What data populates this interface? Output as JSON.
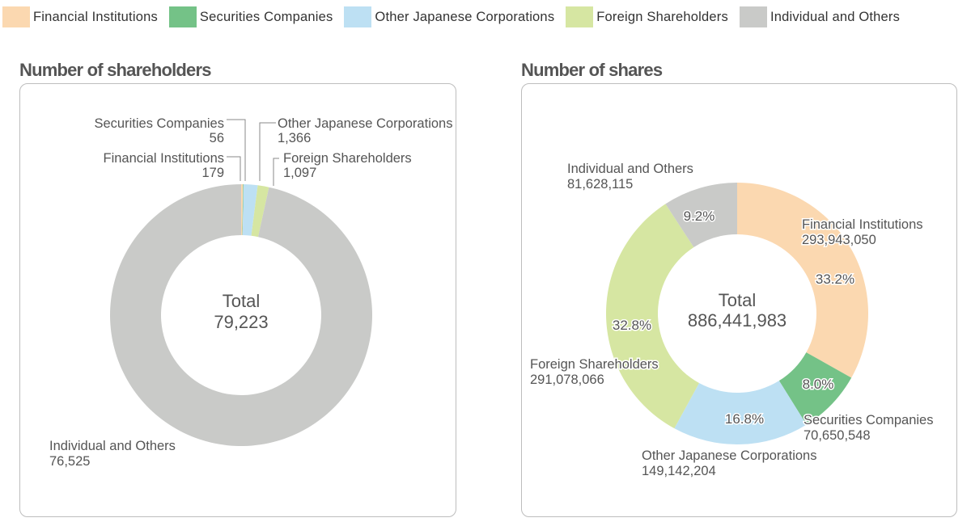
{
  "legend": [
    {
      "label": "Financial Institutions",
      "color": "#fbd8b0"
    },
    {
      "label": "Securities Companies",
      "color": "#74c287"
    },
    {
      "label": "Other Japanese Corporations",
      "color": "#bde0f3"
    },
    {
      "label": "Foreign Shareholders",
      "color": "#d6e6a2"
    },
    {
      "label": "Individual and Others",
      "color": "#c9cac8"
    }
  ],
  "chart_data": [
    {
      "type": "pie",
      "donut": true,
      "title": "Number of shareholders",
      "center_label": "Total",
      "total": "79,223",
      "categories": [
        "Financial Institutions",
        "Securities Companies",
        "Other Japanese Corporations",
        "Foreign Shareholders",
        "Individual and Others"
      ],
      "values": [
        179,
        56,
        1366,
        1097,
        76525
      ],
      "value_labels": [
        "179",
        "56",
        "1,366",
        "1,097",
        "76,525"
      ],
      "colors": [
        "#fbd8b0",
        "#74c287",
        "#bde0f3",
        "#d6e6a2",
        "#c9cac8"
      ],
      "start_angle_deg": 0
    },
    {
      "type": "pie",
      "donut": true,
      "title": "Number of shares",
      "center_label": "Total",
      "total": "886,441,983",
      "categories": [
        "Financial Institutions",
        "Securities Companies",
        "Other Japanese Corporations",
        "Foreign Shareholders",
        "Individual and Others"
      ],
      "values": [
        293943050,
        70650548,
        149142204,
        291078066,
        81628115
      ],
      "value_labels": [
        "293,943,050",
        "70,650,548",
        "149,142,204",
        "291,078,066",
        "81,628,115"
      ],
      "percent_labels": [
        "33.2%",
        "8.0%",
        "16.8%",
        "32.8%",
        "9.2%"
      ],
      "colors": [
        "#fbd8b0",
        "#74c287",
        "#bde0f3",
        "#d6e6a2",
        "#c9cac8"
      ],
      "start_angle_deg": 0
    }
  ]
}
